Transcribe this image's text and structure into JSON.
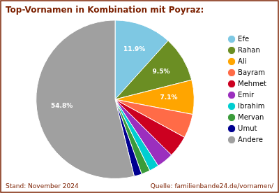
{
  "chart_data": {
    "type": "pie",
    "title": "Top-Vornamen in Kombination mit Poyraz:",
    "categories": [
      "Efe",
      "Rahan",
      "Ali",
      "Bayram",
      "Mehmet",
      "Emir",
      "Ibrahim",
      "Mervan",
      "Umut",
      "Andere"
    ],
    "values": [
      11.9,
      9.5,
      7.1,
      5.0,
      4.5,
      3.5,
      2.0,
      1.8,
      1.6,
      54.8
    ],
    "value_labels": [
      "11.9%",
      "9.5%",
      "7.1%",
      null,
      null,
      null,
      null,
      null,
      null,
      "54.8%"
    ],
    "colors": [
      "#7EC8E3",
      "#6B8E23",
      "#FFA500",
      "#FF6B47",
      "#CC0020",
      "#9B2FBE",
      "#00CED1",
      "#3A9B3A",
      "#000090",
      "#A0A0A0"
    ],
    "data_labels": true,
    "legend": "right",
    "annotations": [
      "Stand: November 2024",
      "Quelle: familienbande24.de/vornamen/"
    ]
  }
}
